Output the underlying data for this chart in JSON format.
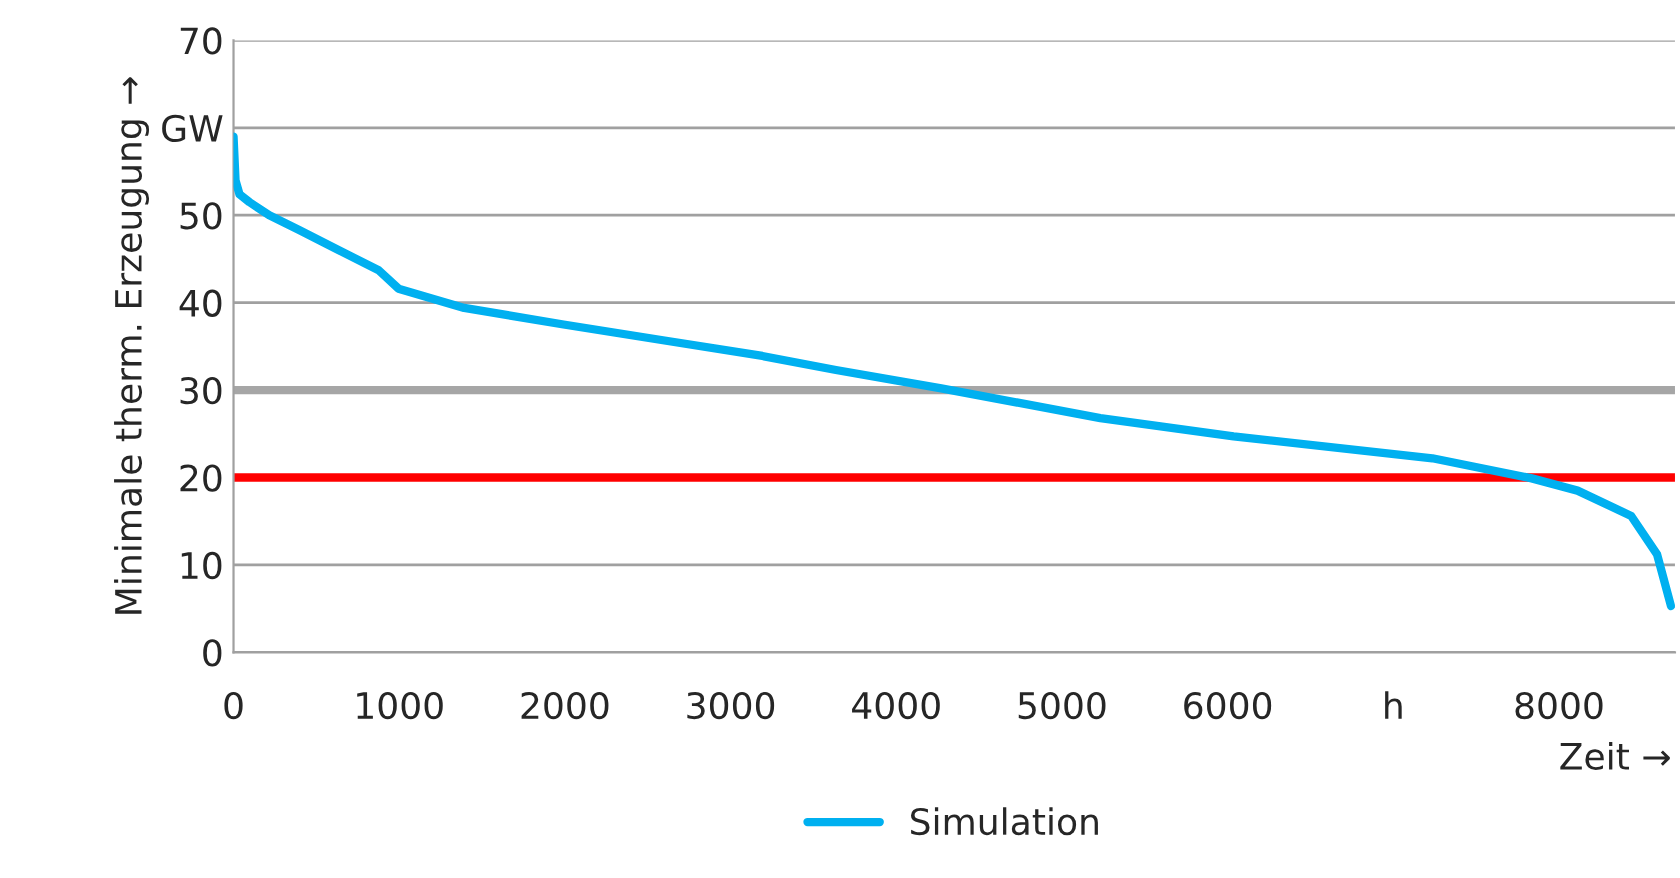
{
  "chart_data": {
    "type": "line",
    "xlabel": "Zeit →",
    "ylabel": "Minimale therm. Erzeugung →",
    "x": [
      0,
      12,
      36,
      96,
      216,
      396,
      636,
      876,
      996,
      1392,
      1992,
      2592,
      3192,
      3636,
      4272,
      5232,
      6036,
      7236,
      7836,
      8112,
      8436,
      8592,
      8676
    ],
    "series": [
      {
        "name": "Simulation",
        "color": "#00b0f0",
        "values": [
          59,
          54,
          52.4,
          51.5,
          50,
          48.3,
          46,
          43.7,
          41.6,
          39.4,
          37.5,
          35.7,
          33.9,
          32.3,
          30.2,
          26.8,
          24.7,
          22.2,
          19.9,
          18.5,
          15.6,
          11.2,
          5.3
        ]
      }
    ],
    "xlim": [
      0,
      8700
    ],
    "xticks": [
      0,
      1000,
      2000,
      3000,
      4000,
      5000,
      6000,
      {
        "value": 7000,
        "label": "h"
      },
      8000
    ],
    "ylim": [
      0,
      70
    ],
    "yticks": [
      0,
      10,
      20,
      30,
      40,
      50,
      {
        "value": 60,
        "label": "GW"
      },
      70
    ],
    "ref_lines": [
      {
        "axis": "y",
        "value": 30,
        "color": "#a6a6a6"
      },
      {
        "axis": "y",
        "value": 20,
        "color": "#ff0000"
      }
    ],
    "grid": "y",
    "legend": "bottom",
    "marker": "none",
    "line_style": "solid"
  }
}
